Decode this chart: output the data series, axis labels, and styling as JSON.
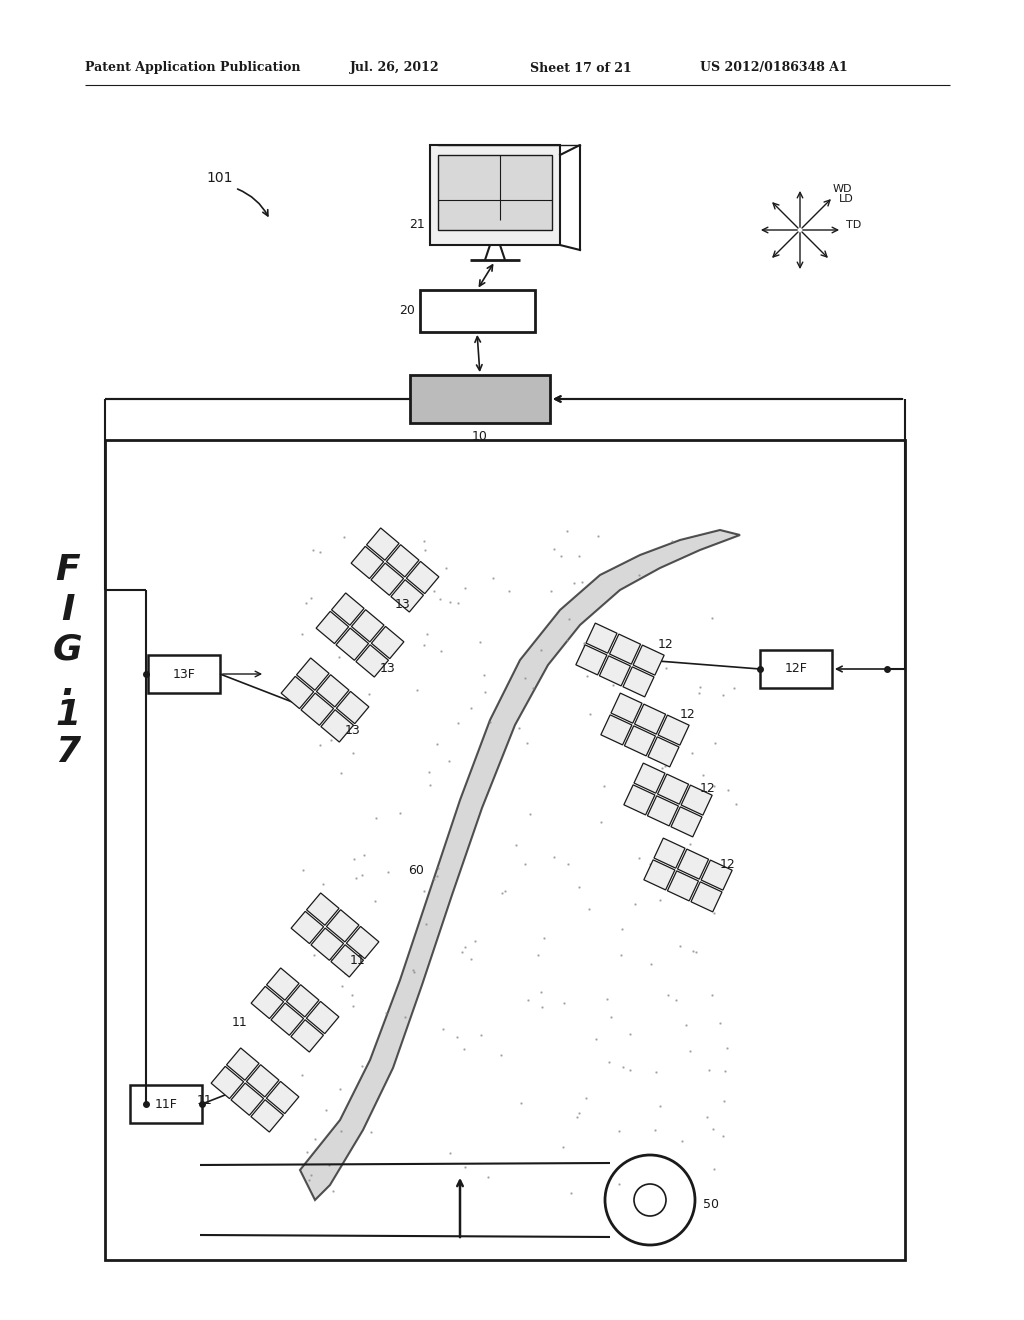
{
  "bg_color": "#ffffff",
  "line_color": "#1a1a1a",
  "header_text": "Patent Application Publication",
  "header_date": "Jul. 26, 2012",
  "header_sheet": "Sheet 17 of 21",
  "header_patent": "US 2012/0186348 A1"
}
